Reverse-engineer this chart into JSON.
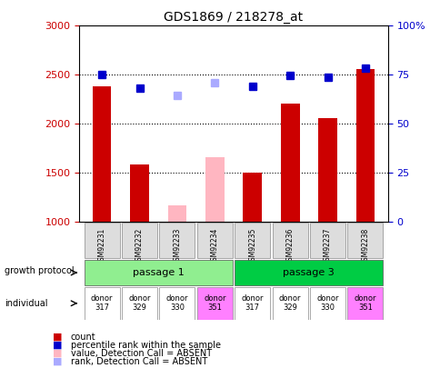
{
  "title": "GDS1869 / 218278_at",
  "samples": [
    "GSM92231",
    "GSM92232",
    "GSM92233",
    "GSM92234",
    "GSM92235",
    "GSM92236",
    "GSM92237",
    "GSM92238"
  ],
  "count_values": [
    2380,
    1590,
    null,
    null,
    1500,
    2210,
    2060,
    2560
  ],
  "count_absent_values": [
    null,
    null,
    1170,
    1660,
    null,
    null,
    null,
    null
  ],
  "percentile_present": [
    2500,
    2360,
    null,
    null,
    2380,
    2490,
    2480,
    2570
  ],
  "percentile_absent": [
    null,
    null,
    2290,
    2420,
    null,
    null,
    null,
    null
  ],
  "ylim": [
    1000,
    3000
  ],
  "y2lim": [
    0,
    100
  ],
  "yticks": [
    1000,
    1500,
    2000,
    2500,
    3000
  ],
  "y2ticks": [
    0,
    25,
    50,
    75,
    100
  ],
  "growth_protocol": [
    "passage 1",
    "passage 1",
    "passage 1",
    "passage 1",
    "passage 3",
    "passage 3",
    "passage 3",
    "passage 3"
  ],
  "individual": [
    "donor\n317",
    "donor\n329",
    "donor\n330",
    "donor\n351",
    "donor\n317",
    "donor\n329",
    "donor\n330",
    "donor\n351"
  ],
  "passage1_color": "#90ee90",
  "passage3_color": "#00cc44",
  "donor_colors": [
    "#ffffff",
    "#ffffff",
    "#ffffff",
    "#ff80ff",
    "#ffffff",
    "#ffffff",
    "#ffffff",
    "#ff80ff"
  ],
  "count_color": "#cc0000",
  "count_absent_color": "#ffb6c1",
  "percentile_color": "#0000cc",
  "percentile_absent_color": "#aaaaff",
  "bar_width": 0.5,
  "background_color": "#ffffff",
  "plot_bg": "#ffffff",
  "grid_color": "#000000"
}
